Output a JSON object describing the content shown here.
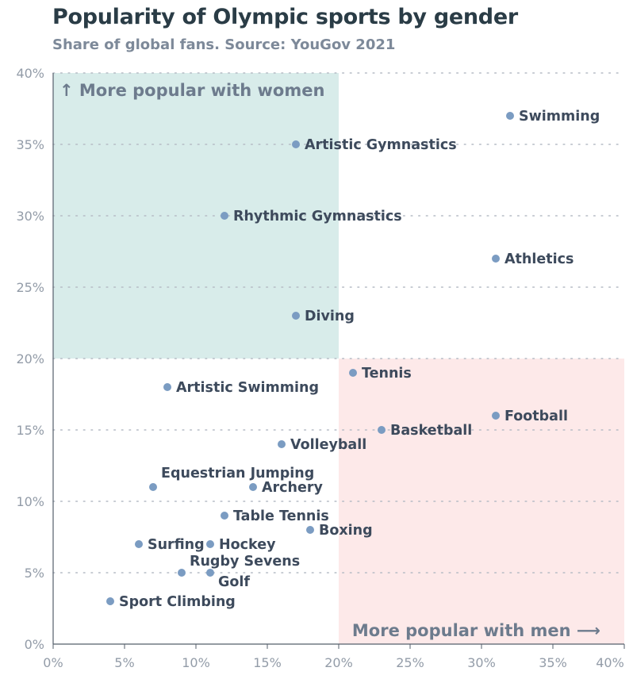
{
  "header": {
    "title": "Popularity of Olympic sports by gender",
    "subtitle": "Share of global fans. Source: YouGov 2021"
  },
  "colors": {
    "women_zone": "#d8ecea",
    "men_zone": "#fde9e9",
    "point": "#7b9cc2",
    "grid": "#b6bcc5",
    "axis": "#555f6b"
  },
  "chart_data": {
    "type": "scatter",
    "title": "Popularity of Olympic sports by gender",
    "subtitle": "Share of global fans. Source: YouGov 2021",
    "xlim": [
      0,
      40
    ],
    "ylim": [
      0,
      40
    ],
    "x_ticks": [
      "0%",
      "5%",
      "10%",
      "15%",
      "20%",
      "25%",
      "30%",
      "35%",
      "40%"
    ],
    "y_ticks": [
      "0%",
      "5%",
      "10%",
      "15%",
      "20%",
      "25%",
      "30%",
      "35%",
      "40%"
    ],
    "grid": "horizontal-dotted",
    "zones": [
      {
        "label": "↑ More popular with women",
        "x_range": [
          0,
          20
        ],
        "y_range": [
          20,
          40
        ]
      },
      {
        "label": "More popular with men ⟶",
        "x_range": [
          20,
          40
        ],
        "y_range": [
          0,
          20
        ]
      }
    ],
    "points": [
      {
        "label": "Swimming",
        "x": 32,
        "y": 37
      },
      {
        "label": "Artistic Gymnastics",
        "x": 17,
        "y": 35
      },
      {
        "label": "Rhythmic Gymnastics",
        "x": 12,
        "y": 30
      },
      {
        "label": "Athletics",
        "x": 31,
        "y": 27
      },
      {
        "label": "Diving",
        "x": 17,
        "y": 23
      },
      {
        "label": "Tennis",
        "x": 21,
        "y": 19
      },
      {
        "label": "Artistic Swimming",
        "x": 8,
        "y": 18
      },
      {
        "label": "Football",
        "x": 31,
        "y": 16
      },
      {
        "label": "Basketball",
        "x": 23,
        "y": 15
      },
      {
        "label": "Volleyball",
        "x": 16,
        "y": 14
      },
      {
        "label": "Equestrian Jumping",
        "x": 7,
        "y": 11
      },
      {
        "label": "Archery",
        "x": 14,
        "y": 11
      },
      {
        "label": "Table Tennis",
        "x": 12,
        "y": 9
      },
      {
        "label": "Boxing",
        "x": 18,
        "y": 8
      },
      {
        "label": "Surfing",
        "x": 6,
        "y": 7
      },
      {
        "label": "Hockey",
        "x": 11,
        "y": 7
      },
      {
        "label": "Rugby Sevens",
        "x": 9,
        "y": 5
      },
      {
        "label": "Golf",
        "x": 11,
        "y": 5
      },
      {
        "label": "Sport Climbing",
        "x": 4,
        "y": 3
      }
    ]
  }
}
